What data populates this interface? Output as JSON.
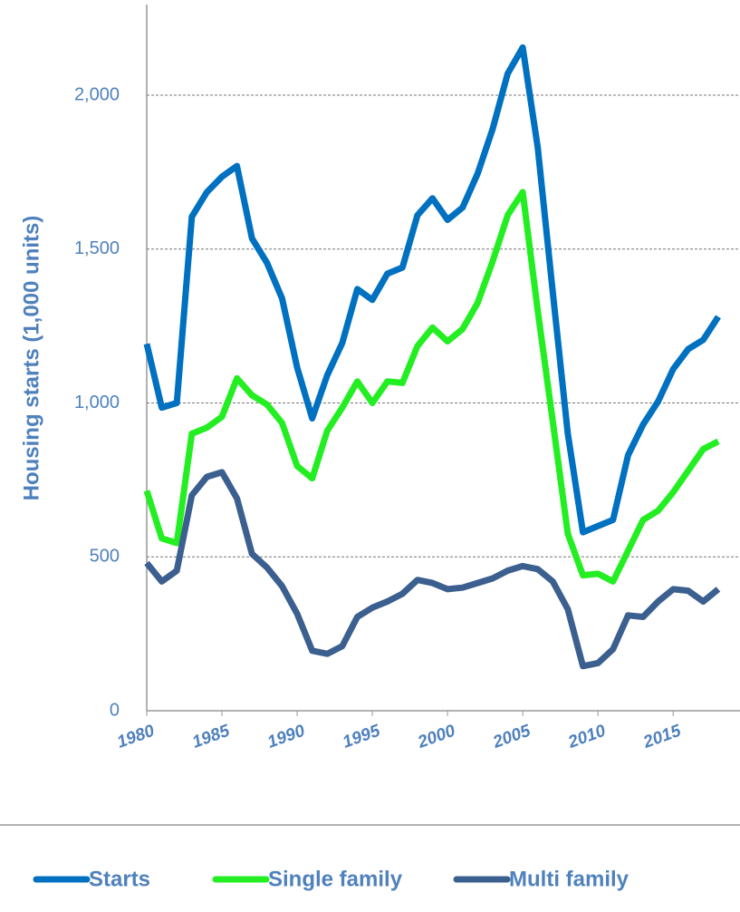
{
  "chart_data": {
    "type": "line",
    "y_label": "Housing starts (1,000 units)",
    "x": [
      1980,
      1981,
      1982,
      1983,
      1984,
      1985,
      1986,
      1987,
      1988,
      1989,
      1990,
      1991,
      1992,
      1993,
      1994,
      1995,
      1996,
      1997,
      1998,
      1999,
      2000,
      2001,
      2002,
      2003,
      2004,
      2005,
      2006,
      2007,
      2008,
      2009,
      2010,
      2011,
      2012,
      2013,
      2014,
      2015,
      2016,
      2017,
      2018
    ],
    "series": [
      {
        "name": "Starts",
        "color": "#0070c0",
        "values": [
          1192,
          985,
          1000,
          1605,
          1685,
          1735,
          1770,
          1535,
          1455,
          1340,
          1115,
          950,
          1090,
          1195,
          1370,
          1335,
          1420,
          1440,
          1610,
          1665,
          1595,
          1635,
          1745,
          1890,
          2070,
          2155,
          1830,
          1360,
          900,
          580,
          600,
          620,
          830,
          930,
          1005,
          1110,
          1175,
          1205,
          1280
        ]
      },
      {
        "name": "Single family",
        "color": "#22ee22",
        "values": [
          715,
          560,
          545,
          900,
          920,
          955,
          1080,
          1025,
          995,
          935,
          795,
          755,
          910,
          985,
          1070,
          1000,
          1070,
          1065,
          1185,
          1245,
          1200,
          1240,
          1325,
          1460,
          1610,
          1685,
          1300,
          940,
          575,
          440,
          445,
          420,
          520,
          620,
          650,
          710,
          780,
          850,
          875
        ]
      },
      {
        "name": "Multi family",
        "color": "#3b5f8e",
        "values": [
          480,
          420,
          455,
          700,
          760,
          775,
          690,
          510,
          465,
          405,
          315,
          195,
          185,
          210,
          305,
          335,
          355,
          380,
          425,
          415,
          395,
          400,
          415,
          430,
          455,
          470,
          460,
          420,
          330,
          145,
          155,
          200,
          310,
          305,
          355,
          395,
          390,
          355,
          395
        ]
      }
    ],
    "xlim": [
      1980,
      2018
    ],
    "xticks": [
      1980,
      1985,
      1990,
      1995,
      2000,
      2005,
      2010,
      2015
    ],
    "ylim": [
      0,
      2300
    ],
    "yticks": [
      0,
      500,
      {
        "value": 1000,
        "label": "1,000"
      },
      {
        "value": 1500,
        "label": "1,500"
      },
      {
        "value": 2000,
        "label": "2,000"
      }
    ],
    "grid": true,
    "legend": "bottom"
  }
}
